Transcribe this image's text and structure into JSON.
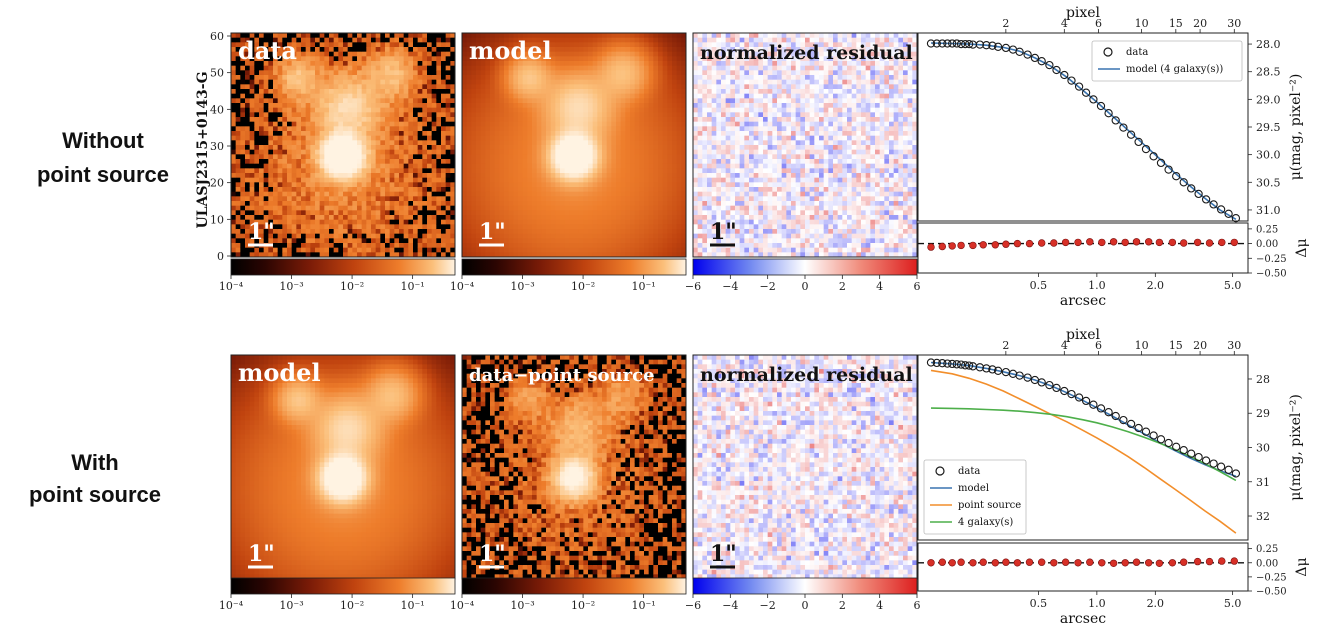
{
  "figure": {
    "object_name": "ULASJ2315+0143-G",
    "colors": {
      "data_marker": "#1a1a1a",
      "model": "#3a74b0",
      "point_source": "#f28e2b",
      "galaxy": "#4daf4a",
      "residual_marker": "#d73027"
    },
    "rows": [
      {
        "label_line1": "Without",
        "label_line2": "point source",
        "panels": [
          {
            "title": "data",
            "kind": "data",
            "scale_label": "1\"",
            "cbar_ticks": [
              "10⁻⁴",
              "10⁻³",
              "10⁻²",
              "10⁻¹"
            ]
          },
          {
            "title": "model",
            "kind": "model_no_ps",
            "scale_label": "1\"",
            "cbar_ticks": [
              "10⁻⁴",
              "10⁻³",
              "10⁻²",
              "10⁻¹"
            ]
          },
          {
            "title": "normalized residual",
            "kind": "resid",
            "scale_label": "1\"",
            "cbar_ticks": [
              "−6",
              "−4",
              "−2",
              "0",
              "2",
              "4",
              "6"
            ]
          }
        ],
        "ylabel_axis_ticks": [
          "60",
          "50",
          "40",
          "30",
          "20",
          "10",
          "0"
        ]
      },
      {
        "label_line1": "With",
        "label_line2": "point source",
        "panels": [
          {
            "title": "model",
            "kind": "model_ps",
            "scale_label": "1\"",
            "cbar_ticks": [
              "10⁻⁴",
              "10⁻³",
              "10⁻²",
              "10⁻¹"
            ]
          },
          {
            "title": "data−point source",
            "kind": "data_minus_ps",
            "scale_label": "1\"",
            "cbar_ticks": [
              "10⁻⁴",
              "10⁻³",
              "10⁻²",
              "10⁻¹"
            ]
          },
          {
            "title": "normalized residual",
            "kind": "resid",
            "scale_label": "1\"",
            "cbar_ticks": [
              "−6",
              "−4",
              "−2",
              "0",
              "2",
              "4",
              "6"
            ]
          }
        ]
      }
    ]
  },
  "chart_data": [
    {
      "type": "scatter",
      "title": "",
      "top_axis_label": "pixel",
      "top_ticks": [
        "2",
        "4",
        "6",
        "10",
        "15",
        "20",
        "30"
      ],
      "top_tick_values": [
        2,
        4,
        6,
        10,
        15,
        20,
        30
      ],
      "xlabel": "arcsec",
      "x_ticks": [
        "0.5",
        "1.0",
        "2.0",
        "5.0"
      ],
      "x_tick_values": [
        0.5,
        1.0,
        2.0,
        5.0
      ],
      "xlim": [
        0.12,
        6.0
      ],
      "x_scale": "log",
      "ylabel": "μ(mag, pixel⁻²)",
      "y_ticks": [
        "28.0",
        "28.5",
        "29.0",
        "29.5",
        "30.0",
        "30.5",
        "31.0"
      ],
      "y_tick_values": [
        28.0,
        28.5,
        29.0,
        29.5,
        30.0,
        30.5,
        31.0
      ],
      "ylim": [
        31.2,
        27.8
      ],
      "y_inverted": true,
      "residual_ylabel": "Δμ",
      "residual_ticks": [
        "0.25",
        "0.00",
        "−0.25",
        "−0.50"
      ],
      "residual_tick_values": [
        0.25,
        0.0,
        -0.25,
        -0.5
      ],
      "residual_ylim": [
        -0.5,
        0.35
      ],
      "legend_position": "top-right",
      "series": [
        {
          "name": "data",
          "style": "open-circle",
          "x": [
            0.14,
            0.15,
            0.16,
            0.17,
            0.18,
            0.19,
            0.2,
            0.21,
            0.22,
            0.23,
            0.25,
            0.27,
            0.29,
            0.31,
            0.34,
            0.37,
            0.4,
            0.44,
            0.48,
            0.52,
            0.57,
            0.62,
            0.68,
            0.74,
            0.81,
            0.88,
            0.96,
            1.05,
            1.15,
            1.25,
            1.37,
            1.5,
            1.64,
            1.79,
            1.96,
            2.14,
            2.34,
            2.56,
            2.8,
            3.06,
            3.34,
            3.65,
            3.99,
            4.36,
            4.77,
            5.2
          ],
          "y": [
            27.99,
            27.99,
            27.99,
            27.99,
            27.99,
            27.99,
            28.0,
            28.0,
            28.0,
            28.01,
            28.01,
            28.02,
            28.03,
            28.05,
            28.07,
            28.1,
            28.14,
            28.19,
            28.25,
            28.31,
            28.38,
            28.47,
            28.56,
            28.66,
            28.77,
            28.88,
            29.0,
            29.12,
            29.25,
            29.38,
            29.51,
            29.64,
            29.77,
            29.9,
            30.03,
            30.15,
            30.27,
            30.39,
            30.5,
            30.61,
            30.71,
            30.81,
            30.9,
            30.99,
            31.07,
            31.15
          ]
        },
        {
          "name": "model (4 galaxy(s))",
          "style": "line",
          "x": [
            0.14,
            0.18,
            0.22,
            0.27,
            0.33,
            0.4,
            0.48,
            0.58,
            0.7,
            0.85,
            1.0,
            1.2,
            1.45,
            1.75,
            2.1,
            2.5,
            3.0,
            3.6,
            4.3,
            5.2
          ],
          "y": [
            27.98,
            27.99,
            28.0,
            28.02,
            28.06,
            28.13,
            28.25,
            28.4,
            28.6,
            28.84,
            29.05,
            29.3,
            29.56,
            29.82,
            30.07,
            30.32,
            30.56,
            30.79,
            31.0,
            31.17
          ]
        }
      ],
      "residuals": {
        "x": [
          0.14,
          0.16,
          0.18,
          0.2,
          0.23,
          0.26,
          0.3,
          0.34,
          0.39,
          0.45,
          0.52,
          0.6,
          0.69,
          0.8,
          0.92,
          1.06,
          1.22,
          1.4,
          1.6,
          1.85,
          2.1,
          2.45,
          2.8,
          3.3,
          3.8,
          4.4,
          5.1
        ],
        "y": [
          -0.06,
          -0.05,
          -0.04,
          -0.03,
          -0.03,
          -0.02,
          -0.02,
          -0.01,
          0.0,
          0.0,
          0.01,
          0.01,
          0.02,
          0.02,
          0.03,
          0.02,
          0.03,
          0.02,
          0.03,
          0.03,
          0.02,
          0.02,
          0.01,
          0.02,
          0.01,
          0.02,
          0.02
        ]
      }
    },
    {
      "type": "scatter",
      "title": "",
      "top_axis_label": "pixel",
      "top_ticks": [
        "2",
        "4",
        "6",
        "10",
        "15",
        "20",
        "30"
      ],
      "top_tick_values": [
        2,
        4,
        6,
        10,
        15,
        20,
        30
      ],
      "xlabel": "arcsec",
      "x_ticks": [
        "0.5",
        "1.0",
        "2.0",
        "5.0"
      ],
      "x_tick_values": [
        0.5,
        1.0,
        2.0,
        5.0
      ],
      "xlim": [
        0.12,
        6.0
      ],
      "x_scale": "log",
      "ylabel": "μ(mag, pixel⁻²)",
      "y_ticks": [
        "28",
        "29",
        "30",
        "31",
        "32"
      ],
      "y_tick_values": [
        28,
        29,
        30,
        31,
        32
      ],
      "ylim": [
        32.7,
        27.3
      ],
      "y_inverted": true,
      "residual_ylabel": "Δμ",
      "residual_ticks": [
        "0.25",
        "0.00",
        "−0.25",
        "−0.50"
      ],
      "residual_tick_values": [
        0.25,
        0.0,
        -0.25,
        -0.5
      ],
      "residual_ylim": [
        -0.5,
        0.35
      ],
      "legend_position": "bottom-left",
      "series": [
        {
          "name": "data",
          "style": "open-circle",
          "x": [
            0.14,
            0.15,
            0.16,
            0.17,
            0.18,
            0.19,
            0.2,
            0.21,
            0.22,
            0.23,
            0.25,
            0.27,
            0.29,
            0.31,
            0.34,
            0.37,
            0.4,
            0.44,
            0.48,
            0.52,
            0.57,
            0.62,
            0.68,
            0.74,
            0.81,
            0.88,
            0.96,
            1.05,
            1.15,
            1.25,
            1.37,
            1.5,
            1.64,
            1.79,
            1.96,
            2.14,
            2.34,
            2.56,
            2.8,
            3.06,
            3.34,
            3.65,
            3.99,
            4.36,
            4.77,
            5.2
          ],
          "y": [
            27.52,
            27.53,
            27.54,
            27.55,
            27.56,
            27.57,
            27.58,
            27.6,
            27.61,
            27.63,
            27.66,
            27.69,
            27.72,
            27.76,
            27.8,
            27.85,
            27.9,
            27.96,
            28.03,
            28.1,
            28.18,
            28.26,
            28.35,
            28.44,
            28.54,
            28.64,
            28.75,
            28.86,
            28.97,
            29.08,
            29.2,
            29.31,
            29.43,
            29.54,
            29.65,
            29.76,
            29.87,
            29.98,
            30.08,
            30.18,
            30.28,
            30.38,
            30.47,
            30.56,
            30.65,
            30.76
          ]
        },
        {
          "name": "model",
          "style": "line",
          "x": [
            0.14,
            0.18,
            0.22,
            0.27,
            0.33,
            0.4,
            0.48,
            0.58,
            0.7,
            0.85,
            1.0,
            1.2,
            1.45,
            1.75,
            2.1,
            2.5,
            3.0,
            3.6,
            4.3,
            5.2
          ],
          "y": [
            27.52,
            27.56,
            27.61,
            27.69,
            27.79,
            27.9,
            28.03,
            28.2,
            28.4,
            28.63,
            28.84,
            29.08,
            29.34,
            29.6,
            29.85,
            30.08,
            30.3,
            30.5,
            30.68,
            30.84
          ]
        },
        {
          "name": "point source",
          "style": "line",
          "x": [
            0.14,
            0.18,
            0.22,
            0.27,
            0.33,
            0.4,
            0.48,
            0.58,
            0.7,
            0.85,
            1.0,
            1.2,
            1.45,
            1.75,
            2.1,
            2.5,
            3.0,
            3.6,
            4.3,
            5.2
          ],
          "y": [
            27.75,
            27.85,
            27.98,
            28.15,
            28.35,
            28.58,
            28.8,
            29.03,
            29.25,
            29.5,
            29.72,
            29.98,
            30.27,
            30.58,
            30.9,
            31.2,
            31.52,
            31.85,
            32.15,
            32.5
          ]
        },
        {
          "name": "4 galaxy(s)",
          "style": "line",
          "x": [
            0.14,
            0.18,
            0.22,
            0.27,
            0.33,
            0.4,
            0.48,
            0.58,
            0.7,
            0.85,
            1.0,
            1.2,
            1.45,
            1.75,
            2.1,
            2.5,
            3.0,
            3.6,
            4.3,
            5.2
          ],
          "y": [
            28.85,
            28.86,
            28.87,
            28.89,
            28.91,
            28.94,
            28.98,
            29.03,
            29.1,
            29.19,
            29.28,
            29.4,
            29.54,
            29.7,
            29.87,
            30.05,
            30.25,
            30.47,
            30.7,
            30.96
          ]
        }
      ],
      "residuals": {
        "x": [
          0.14,
          0.16,
          0.18,
          0.2,
          0.23,
          0.26,
          0.3,
          0.34,
          0.39,
          0.45,
          0.52,
          0.6,
          0.69,
          0.8,
          0.92,
          1.06,
          1.22,
          1.4,
          1.6,
          1.85,
          2.1,
          2.45,
          2.8,
          3.3,
          3.8,
          4.4,
          5.1
        ],
        "y": [
          0.0,
          0.01,
          0.0,
          0.01,
          0.0,
          0.01,
          0.0,
          0.01,
          0.0,
          0.01,
          0.01,
          0.0,
          0.01,
          0.0,
          0.01,
          0.0,
          -0.01,
          0.0,
          0.01,
          0.0,
          -0.01,
          0.0,
          0.01,
          0.02,
          0.02,
          0.03,
          0.03
        ]
      }
    }
  ]
}
